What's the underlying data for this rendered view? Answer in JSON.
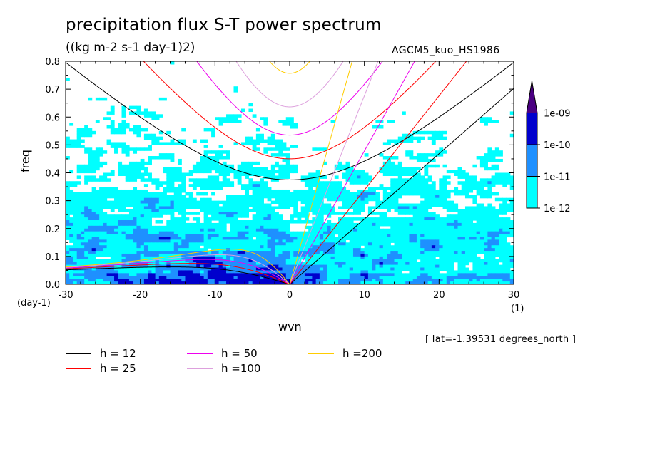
{
  "chart_data": {
    "type": "heatmap",
    "title": "precipitation flux S-T power spectrum",
    "subtitle": "((kg m-2 s-1 day-1)2)",
    "model_label": "AGCM5_kuo_HS1986",
    "xlabel": "wvn",
    "ylabel": "freq",
    "x_unit": "(1)",
    "y_unit": "(day-1)",
    "footnote": "[ lat=-1.39531 degrees_north ]",
    "xlim": [
      -30,
      30
    ],
    "ylim": [
      0,
      0.8
    ],
    "x_ticks": [
      -30,
      -20,
      -10,
      0,
      10,
      20,
      30
    ],
    "x_tick_labels": [
      "-30",
      "-20",
      "-10",
      "0",
      "10",
      "20",
      "30"
    ],
    "y_ticks": [
      0,
      0.1,
      0.2,
      0.3,
      0.4,
      0.5,
      0.6,
      0.7,
      0.8
    ],
    "y_tick_labels": [
      "0.0",
      "0.1",
      "0.2",
      "0.3",
      "0.4",
      "0.5",
      "0.6",
      "0.7",
      "0.8"
    ],
    "colorbar": {
      "levels": [
        "1e-12",
        "1e-11",
        "1e-10",
        "1e-09"
      ],
      "colors": [
        "#00ffff",
        "#1e90ff",
        "#0000cd",
        "#4b0082"
      ]
    },
    "dispersion_curves": [
      {
        "name": "h = 12",
        "h": 12,
        "color": "#000000"
      },
      {
        "name": "h = 25",
        "h": 25,
        "color": "#ff0000"
      },
      {
        "name": "h = 50",
        "h": 50,
        "color": "#ee00ee"
      },
      {
        "name": "h =100",
        "h": 100,
        "color": "#dda0dd"
      },
      {
        "name": "h =200",
        "h": 200,
        "color": "#ffcc00"
      }
    ]
  }
}
